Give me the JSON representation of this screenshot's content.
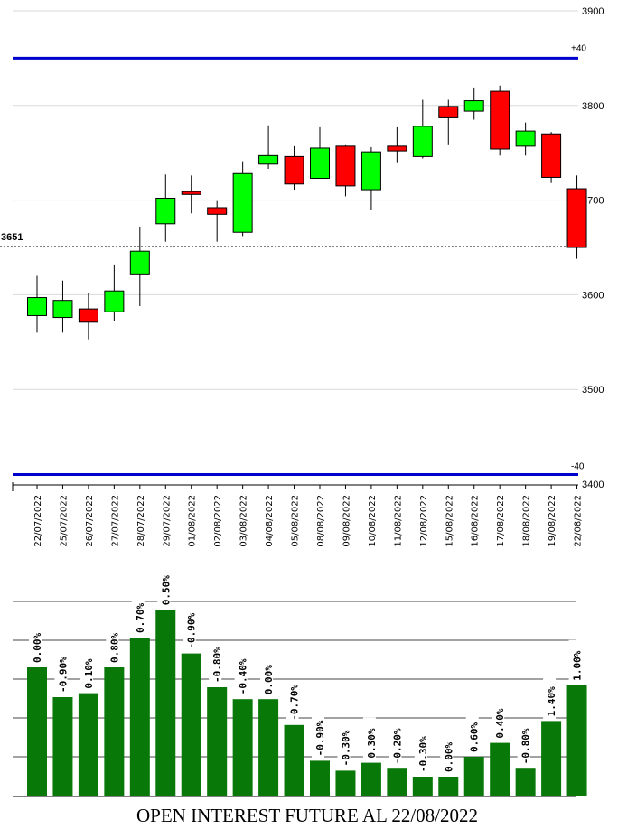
{
  "chart_data": [
    {
      "type": "candlestick",
      "ylim": [
        3400,
        3900
      ],
      "y_ticks": [
        "3900",
        "3800",
        "3700",
        "3600",
        "3500",
        "3400"
      ],
      "reference_value": "3651",
      "reference_price": 3651,
      "band_upper_label": "+40",
      "band_lower_label": "-40",
      "band_upper_price": 3850,
      "band_lower_price": 3410,
      "colors": {
        "up": "#00ff00",
        "down": "#ff0000",
        "band": "#0000cc",
        "grid": "#d9d9d9"
      },
      "candles": [
        {
          "date": "22/07/2022",
          "open": 3578,
          "high": 3620,
          "low": 3560,
          "close": 3597
        },
        {
          "date": "25/07/2022",
          "open": 3576,
          "high": 3615,
          "low": 3560,
          "close": 3594
        },
        {
          "date": "26/07/2022",
          "open": 3585,
          "high": 3602,
          "low": 3553,
          "close": 3571
        },
        {
          "date": "27/07/2022",
          "open": 3582,
          "high": 3632,
          "low": 3572,
          "close": 3604
        },
        {
          "date": "28/07/2022",
          "open": 3622,
          "high": 3672,
          "low": 3588,
          "close": 3646
        },
        {
          "date": "29/07/2022",
          "open": 3675,
          "high": 3727,
          "low": 3656,
          "close": 3702
        },
        {
          "date": "01/08/2022",
          "open": 3709,
          "high": 3726,
          "low": 3686,
          "close": 3706
        },
        {
          "date": "02/08/2022",
          "open": 3692,
          "high": 3699,
          "low": 3656,
          "close": 3685
        },
        {
          "date": "03/08/2022",
          "open": 3666,
          "high": 3741,
          "low": 3662,
          "close": 3728
        },
        {
          "date": "04/08/2022",
          "open": 3738,
          "high": 3779,
          "low": 3733,
          "close": 3747
        },
        {
          "date": "05/08/2022",
          "open": 3746,
          "high": 3757,
          "low": 3711,
          "close": 3717
        },
        {
          "date": "08/08/2022",
          "open": 3723,
          "high": 3777,
          "low": 3723,
          "close": 3755
        },
        {
          "date": "09/08/2022",
          "open": 3757,
          "high": 3758,
          "low": 3704,
          "close": 3715
        },
        {
          "date": "10/08/2022",
          "open": 3711,
          "high": 3756,
          "low": 3690,
          "close": 3751
        },
        {
          "date": "11/08/2022",
          "open": 3757,
          "high": 3777,
          "low": 3740,
          "close": 3752
        },
        {
          "date": "12/08/2022",
          "open": 3746,
          "high": 3806,
          "low": 3744,
          "close": 3778
        },
        {
          "date": "15/08/2022",
          "open": 3799,
          "high": 3806,
          "low": 3758,
          "close": 3787
        },
        {
          "date": "16/08/2022",
          "open": 3794,
          "high": 3819,
          "low": 3785,
          "close": 3805
        },
        {
          "date": "17/08/2022",
          "open": 3815,
          "high": 3821,
          "low": 3747,
          "close": 3754
        },
        {
          "date": "18/08/2022",
          "open": 3757,
          "high": 3782,
          "low": 3747,
          "close": 3773
        },
        {
          "date": "19/08/2022",
          "open": 3770,
          "high": 3772,
          "low": 3718,
          "close": 3724
        },
        {
          "date": "22/08/2022",
          "open": 3712,
          "high": 3726,
          "low": 3638,
          "close": 3650
        }
      ]
    },
    {
      "type": "bar",
      "ylim": [
        0,
        100
      ],
      "categories": [
        "22/07/2022",
        "25/07/2022",
        "26/07/2022",
        "27/07/2022",
        "28/07/2022",
        "29/07/2022",
        "01/08/2022",
        "02/08/2022",
        "03/08/2022",
        "04/08/2022",
        "05/08/2022",
        "08/08/2022",
        "09/08/2022",
        "10/08/2022",
        "11/08/2022",
        "12/08/2022",
        "15/08/2022",
        "16/08/2022",
        "17/08/2022",
        "18/08/2022",
        "19/08/2022",
        "22/08/2022"
      ],
      "values": [
        65,
        50,
        52,
        65,
        80,
        94,
        72,
        55,
        49,
        49,
        36,
        18,
        13,
        17,
        14,
        10,
        10,
        20,
        27,
        14,
        38,
        56
      ],
      "labels": [
        "0.00%",
        "-0.90%",
        "0.10%",
        "0.80%",
        "0.70%",
        "0.50%",
        "-0.90%",
        "-0.80%",
        "-0.40%",
        "0.00%",
        "-0.70%",
        "-0.90%",
        "-0.30%",
        "0.30%",
        "-0.20%",
        "-0.30%",
        "0.00%",
        "0.60%",
        "0.40%",
        "-0.80%",
        "1.40%",
        "1.00%"
      ],
      "colors": {
        "bar": "#087808",
        "grid": "#444444"
      },
      "title": "OPEN INTEREST FUTURE AL 22/08/2022"
    }
  ]
}
